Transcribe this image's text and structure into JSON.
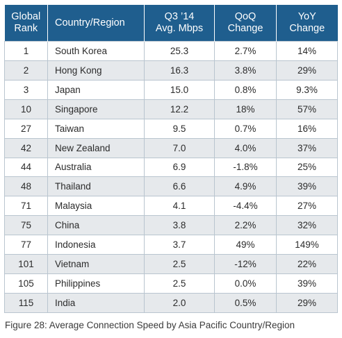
{
  "chart_data": {
    "type": "table",
    "columns": [
      "Global Rank",
      "Country/Region",
      "Q3 '14 Avg. Mbps",
      "QoQ Change",
      "YoY Change"
    ],
    "rows": [
      {
        "rank": "1",
        "country": "South Korea",
        "mbps": "25.3",
        "qoq": "2.7%",
        "yoy": "14%"
      },
      {
        "rank": "2",
        "country": "Hong Kong",
        "mbps": "16.3",
        "qoq": "3.8%",
        "yoy": "29%"
      },
      {
        "rank": "3",
        "country": "Japan",
        "mbps": "15.0",
        "qoq": "0.8%",
        "yoy": "9.3%"
      },
      {
        "rank": "10",
        "country": "Singapore",
        "mbps": "12.2",
        "qoq": "18%",
        "yoy": "57%"
      },
      {
        "rank": "27",
        "country": "Taiwan",
        "mbps": "9.5",
        "qoq": "0.7%",
        "yoy": "16%"
      },
      {
        "rank": "42",
        "country": "New Zealand",
        "mbps": "7.0",
        "qoq": "4.0%",
        "yoy": "37%"
      },
      {
        "rank": "44",
        "country": "Australia",
        "mbps": "6.9",
        "qoq": "-1.8%",
        "yoy": "25%"
      },
      {
        "rank": "48",
        "country": "Thailand",
        "mbps": "6.6",
        "qoq": "4.9%",
        "yoy": "39%"
      },
      {
        "rank": "71",
        "country": "Malaysia",
        "mbps": "4.1",
        "qoq": "-4.4%",
        "yoy": "27%"
      },
      {
        "rank": "75",
        "country": "China",
        "mbps": "3.8",
        "qoq": "2.2%",
        "yoy": "32%"
      },
      {
        "rank": "77",
        "country": "Indonesia",
        "mbps": "3.7",
        "qoq": "49%",
        "yoy": "149%"
      },
      {
        "rank": "101",
        "country": "Vietnam",
        "mbps": "2.5",
        "qoq": "-12%",
        "yoy": "22%"
      },
      {
        "rank": "105",
        "country": "Philippines",
        "mbps": "2.5",
        "qoq": "0.0%",
        "yoy": "39%"
      },
      {
        "rank": "115",
        "country": "India",
        "mbps": "2.0",
        "qoq": "0.5%",
        "yoy": "29%"
      }
    ],
    "caption": "Figure 28: Average Connection Speed by Asia Pacific Country/Region"
  },
  "header": {
    "rank_line1": "Global",
    "rank_line2": "Rank",
    "country": "Country/Region",
    "mbps_line1": "Q3 ’14",
    "mbps_line2": "Avg. Mbps",
    "qoq_line1": "QoQ",
    "qoq_line2": "Change",
    "yoy_line1": "YoY",
    "yoy_line2": "Change"
  },
  "colors": {
    "header_bg": "#1f5e8e",
    "alt_row": "#e6e9ec",
    "border": "#b9c5cf"
  }
}
